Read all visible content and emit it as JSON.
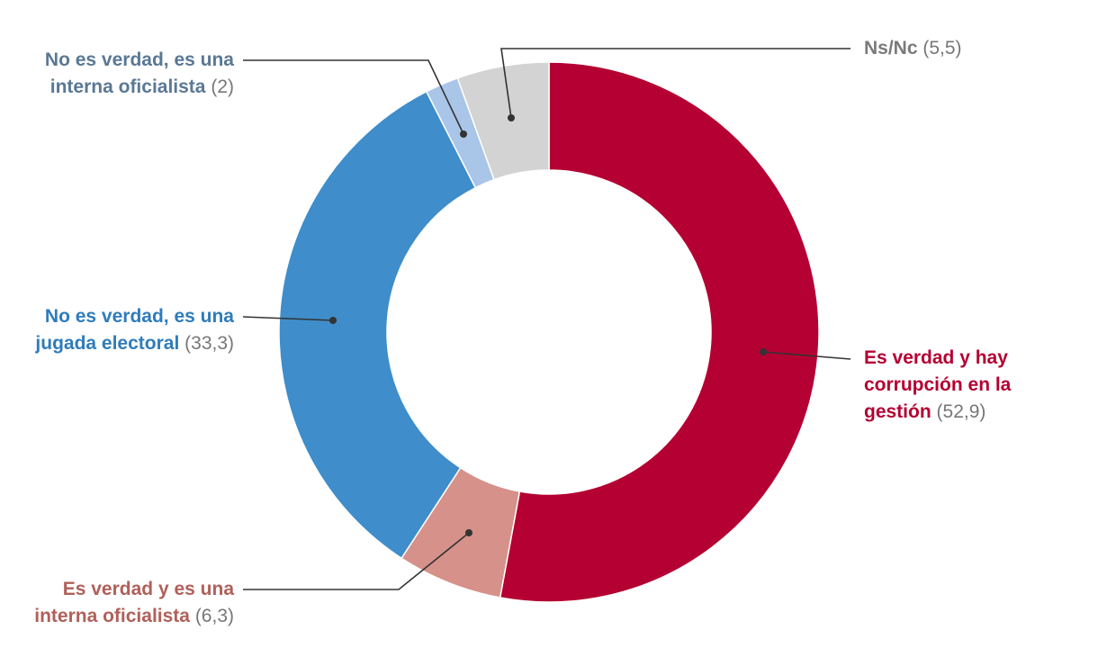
{
  "chart_data": {
    "type": "pie",
    "donut": true,
    "slices": [
      {
        "label": "Es verdad y hay corrupción en la gestión",
        "value": 52.9,
        "value_text": "(52,9)",
        "color": "#b40032",
        "label_color": "#b40032"
      },
      {
        "label": "Es verdad y es una interna oficialista",
        "value": 6.3,
        "value_text": "(6,3)",
        "color": "#d6918a",
        "label_color": "#b0605a"
      },
      {
        "label": "No es verdad, es una jugada electoral",
        "value": 33.3,
        "value_text": "(33,3)",
        "color": "#3f8dca",
        "label_color": "#2f7cbb"
      },
      {
        "label": "No es verdad, es una interna oficialista",
        "value": 2,
        "value_text": "(2)",
        "color": "#a9c5e8",
        "label_color": "#5a7894"
      },
      {
        "label": "Ns/Nc",
        "value": 5.5,
        "value_text": "(5,5)",
        "color": "#d3d3d3",
        "label_color": "#7a7a7a"
      }
    ],
    "value_color": "#777777"
  },
  "labels": {
    "s0": {
      "line1": "Es verdad y hay",
      "line2": "corrupción en la",
      "line3": "gestión",
      "value": "(52,9)"
    },
    "s1": {
      "line1": "Es verdad y es una",
      "line2": "interna oficialista",
      "value": "(6,3)"
    },
    "s2": {
      "line1": "No es verdad, es una",
      "line2": "jugada electoral",
      "value": "(33,3)"
    },
    "s3": {
      "line1": "No es verdad, es una",
      "line2": "interna oficialista",
      "value": "(2)"
    },
    "s4": {
      "line1": "Ns/Nc",
      "value": "(5,5)"
    }
  }
}
